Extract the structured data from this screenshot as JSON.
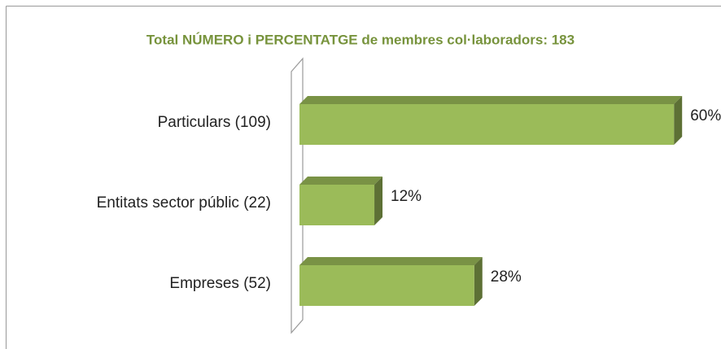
{
  "chart_data": {
    "type": "bar3d",
    "title": "Total NÚMERO i PERCENTATGE de membres col·laboradors: 183",
    "categories": [
      "Particulars (109)",
      "Entitats sector públic (22)",
      "Empreses (52)"
    ],
    "values": [
      60,
      12,
      28
    ],
    "value_labels": [
      "60%",
      "12%",
      "28%"
    ],
    "color": "#9bbb59"
  }
}
